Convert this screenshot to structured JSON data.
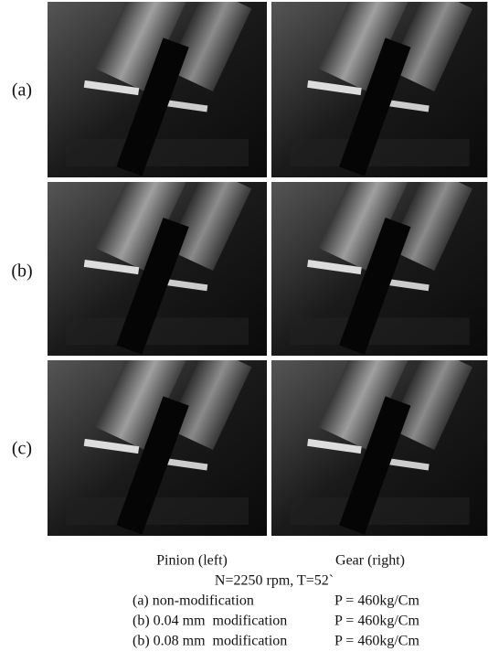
{
  "row_labels": [
    "(a)",
    "(b)",
    "(c)"
  ],
  "caption": {
    "column_labels": [
      "Pinion (left)",
      "Gear (right)"
    ],
    "conditions": "N=2250 rpm, T=52`",
    "cases": [
      {
        "label": "(a) non-modification",
        "load": "P = 460kg/Cm"
      },
      {
        "label": "(b) 0.04 mm  modification",
        "load": "P = 460kg/Cm"
      },
      {
        "label": "(b) 0.08 mm  modification",
        "load": "P = 460kg/Cm"
      }
    ]
  }
}
